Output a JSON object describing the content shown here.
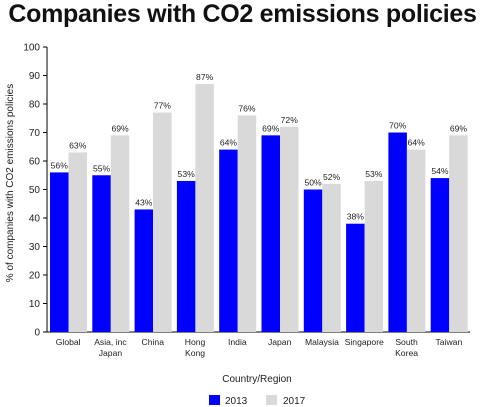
{
  "chart_data": {
    "type": "bar",
    "title": "Companies with CO2 emissions policies",
    "xlabel": "Country/Region",
    "ylabel": "% of companies with CO2 emissions policies",
    "ylim": [
      0,
      100
    ],
    "yticks": [
      0,
      10,
      20,
      30,
      40,
      50,
      60,
      70,
      80,
      90,
      100
    ],
    "grid": false,
    "legend_position": "bottom-center",
    "categories": [
      [
        "Global"
      ],
      [
        "Asia, inc",
        "Japan"
      ],
      [
        "China"
      ],
      [
        "Hong",
        "Kong"
      ],
      [
        "India"
      ],
      [
        "Japan"
      ],
      [
        "Malaysia"
      ],
      [
        "Singapore"
      ],
      [
        "South",
        "Korea"
      ],
      [
        "Taiwan"
      ]
    ],
    "series": [
      {
        "name": "2013",
        "color": "#0000ff",
        "values": [
          56,
          55,
          43,
          53,
          64,
          69,
          50,
          38,
          70,
          54
        ]
      },
      {
        "name": "2017",
        "color": "#d9d9d9",
        "values": [
          63,
          69,
          77,
          87,
          76,
          72,
          52,
          53,
          64,
          69
        ]
      }
    ],
    "value_suffix": "%"
  }
}
